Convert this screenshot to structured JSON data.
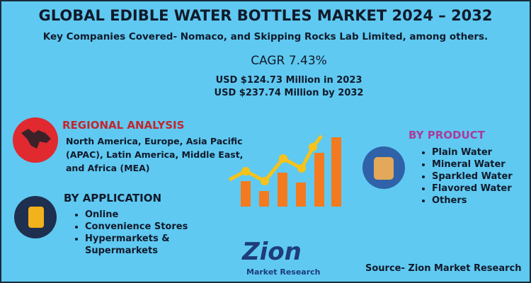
{
  "header": {
    "title": "GLOBAL EDIBLE WATER BOTTLES MARKET 2024 – 2032",
    "subtitle": "Key Companies Covered- Nomaco, and Skipping Rocks Lab Limited, among others."
  },
  "stats": {
    "cagr": "CAGR 7.43%",
    "lines": [
      "USD $124.73 Million in 2023",
      "USD $237.74 Million by 2032"
    ]
  },
  "regional": {
    "heading": "REGIONAL ANALYSIS",
    "text": "North America, Europe, Asia Pacific (APAC), Latin America, Middle East, and Africa (MEA)"
  },
  "application": {
    "heading": "BY APPLICATION",
    "items": [
      "Online",
      "Convenience Stores",
      "Hypermarkets & Supermarkets"
    ]
  },
  "product": {
    "heading": "BY PRODUCT",
    "items": [
      "Plain Water",
      "Mineral Water",
      "Sparkled Water",
      "Flavored Water",
      "Others"
    ]
  },
  "logo": {
    "name": "Zion",
    "tagline": "Market Research"
  },
  "source": "Source- Zion Market Research"
}
